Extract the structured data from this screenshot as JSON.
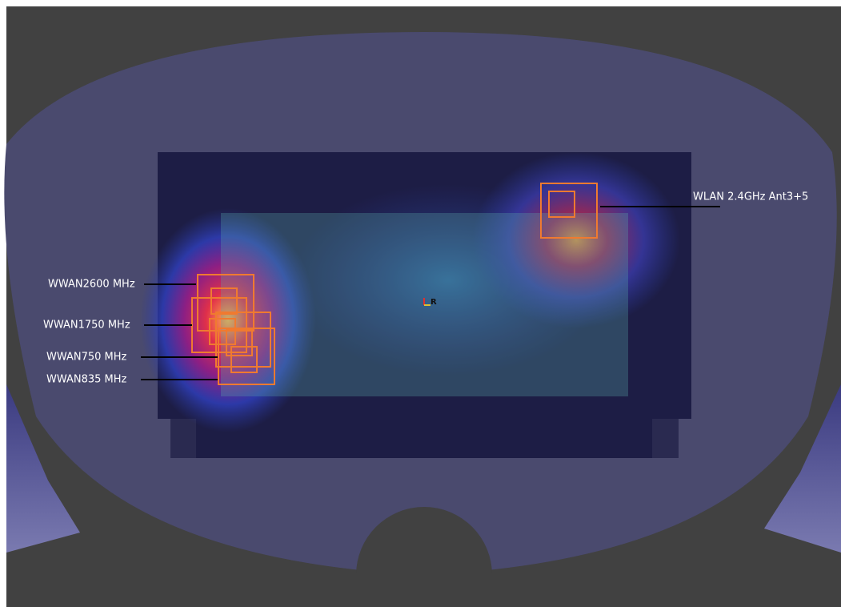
{
  "antenna_labels": [
    "WLAN 2.4GHz Ant3+5",
    "WWAN2600 MHz",
    "WWAN1750 MHz",
    "WWAN750 MHz",
    "WWAN835 MHz"
  ],
  "axis_label": "R"
}
